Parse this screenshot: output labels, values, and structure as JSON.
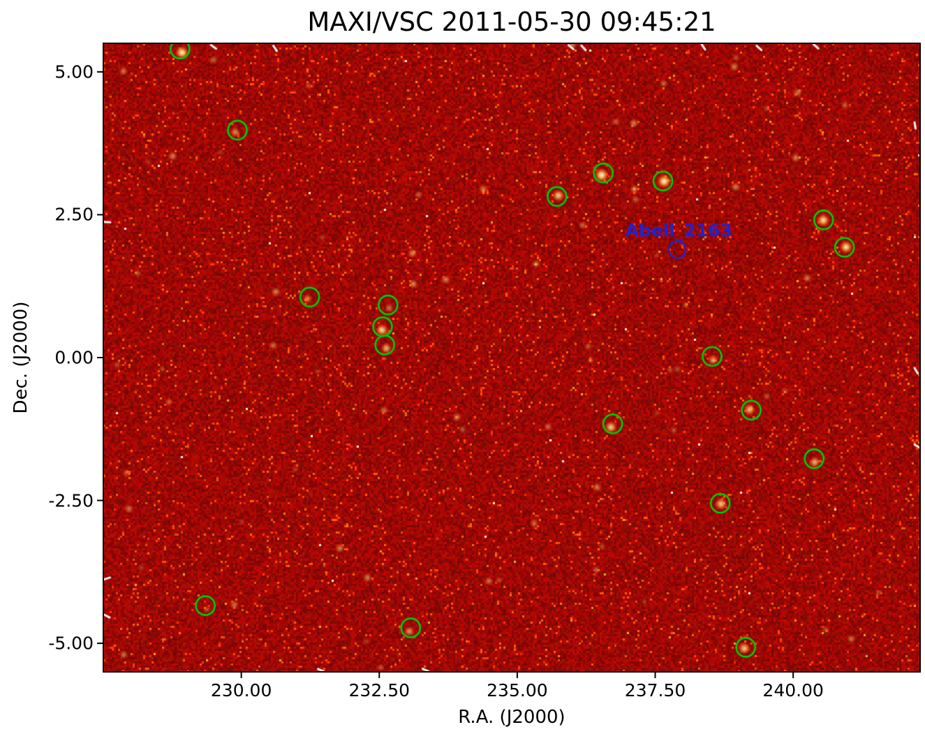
{
  "chart_data": {
    "type": "heatmap",
    "title": "MAXI/VSC 2011-05-30 09:45:21",
    "xlabel": "R.A. (J2000)",
    "ylabel": "Dec. (J2000)",
    "x_axis": {
      "range": [
        227.5,
        242.3
      ],
      "ticks": [
        {
          "value": 230.0,
          "label": "230.00"
        },
        {
          "value": 232.5,
          "label": "232.50"
        },
        {
          "value": 235.0,
          "label": "235.00"
        },
        {
          "value": 237.5,
          "label": "237.50"
        },
        {
          "value": 240.0,
          "label": "240.00"
        }
      ]
    },
    "y_axis": {
      "range": [
        -5.5,
        5.5
      ],
      "ticks": [
        {
          "value": 5.0,
          "label": "5.00"
        },
        {
          "value": 2.5,
          "label": "2.50"
        },
        {
          "value": 0.0,
          "label": "0.00"
        },
        {
          "value": -2.5,
          "label": "-2.50"
        },
        {
          "value": -5.0,
          "label": "-5.00"
        }
      ]
    },
    "colormap": "dark-red sky image with bright yellow-white point sources",
    "colors": {
      "background": "#9a0d06",
      "detection_circle": "#00c000",
      "annotation": "#2222cc",
      "frame": "#000000"
    },
    "detections": [
      {
        "ra": 228.89,
        "dec": 5.4,
        "intensity": 0.95
      },
      {
        "ra": 229.93,
        "dec": 3.98,
        "intensity": 0.55
      },
      {
        "ra": 236.56,
        "dec": 3.23,
        "intensity": 1.0
      },
      {
        "ra": 237.64,
        "dec": 3.09,
        "intensity": 1.0
      },
      {
        "ra": 235.72,
        "dec": 2.82,
        "intensity": 0.8
      },
      {
        "ra": 240.55,
        "dec": 2.41,
        "intensity": 0.9
      },
      {
        "ra": 240.93,
        "dec": 1.93,
        "intensity": 0.9
      },
      {
        "ra": 231.24,
        "dec": 1.06,
        "intensity": 0.5
      },
      {
        "ra": 232.66,
        "dec": 0.92,
        "intensity": 0.45
      },
      {
        "ra": 232.56,
        "dec": 0.54,
        "intensity": 0.85
      },
      {
        "ra": 232.6,
        "dec": 0.22,
        "intensity": 0.7
      },
      {
        "ra": 238.53,
        "dec": 0.02,
        "intensity": 0.6
      },
      {
        "ra": 239.24,
        "dec": -0.92,
        "intensity": 0.75
      },
      {
        "ra": 236.73,
        "dec": -1.16,
        "intensity": 0.8
      },
      {
        "ra": 240.38,
        "dec": -1.77,
        "intensity": 0.7
      },
      {
        "ra": 238.68,
        "dec": -2.55,
        "intensity": 0.8
      },
      {
        "ra": 229.35,
        "dec": -4.34,
        "intensity": 0.3
      },
      {
        "ra": 233.07,
        "dec": -4.73,
        "intensity": 0.6
      },
      {
        "ra": 239.14,
        "dec": -5.07,
        "intensity": 0.8
      }
    ],
    "annotation": {
      "label": "Abell_2163",
      "ra": 237.9,
      "dec": 1.89
    }
  }
}
